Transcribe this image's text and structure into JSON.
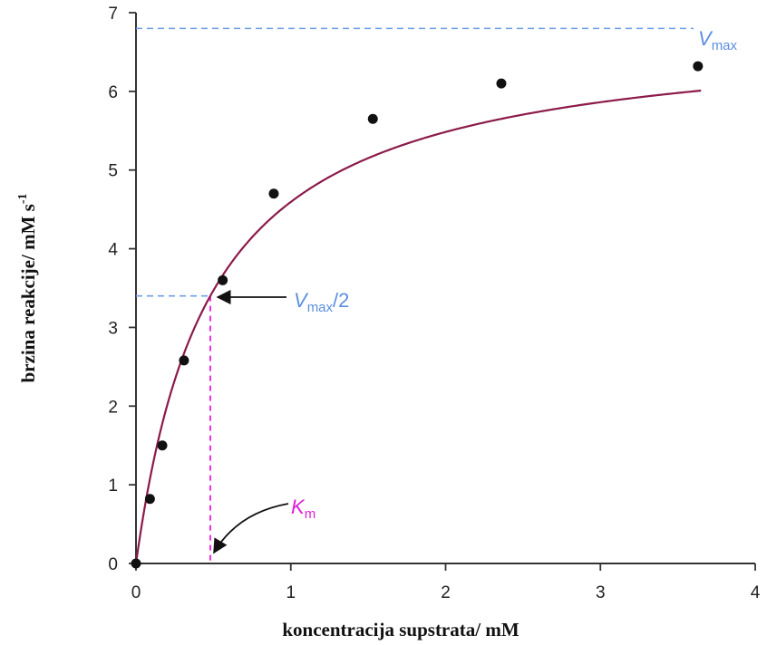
{
  "chart_data": {
    "type": "scatter",
    "xlabel": "koncentracija supstrata/ mM",
    "ylabel": "brzina reakcije/ mM s",
    "ylabel_sup": "-1",
    "xlim": [
      0,
      4
    ],
    "ylim": [
      0,
      7
    ],
    "x_ticks": [
      "0",
      "1",
      "2",
      "3",
      "4"
    ],
    "y_ticks": [
      "0",
      "1",
      "2",
      "3",
      "4",
      "5",
      "6",
      "7"
    ],
    "grid": false,
    "points": {
      "x": [
        0.0,
        0.09,
        0.17,
        0.31,
        0.56,
        0.89,
        1.53,
        2.36,
        3.63
      ],
      "y": [
        0.0,
        0.82,
        1.5,
        2.58,
        3.6,
        4.7,
        5.65,
        6.1,
        6.32
      ]
    },
    "fit": {
      "vmax": 6.8,
      "km": 0.48
    },
    "annotations": {
      "vmax_italic": "V",
      "vmax_sub": "max",
      "half_italic": "V",
      "half_sub": "max",
      "half_suffix": "/2",
      "km_italic": "K",
      "km_sub": "m"
    },
    "colors": {
      "curve": "#8c1a4a",
      "points": "#111111",
      "vmax_line": "#6e9ee8",
      "km_line": "#ee2fe0",
      "km_label": "#e020d8",
      "vmax_label": "#5b8fdf",
      "axis": "#333333"
    }
  }
}
